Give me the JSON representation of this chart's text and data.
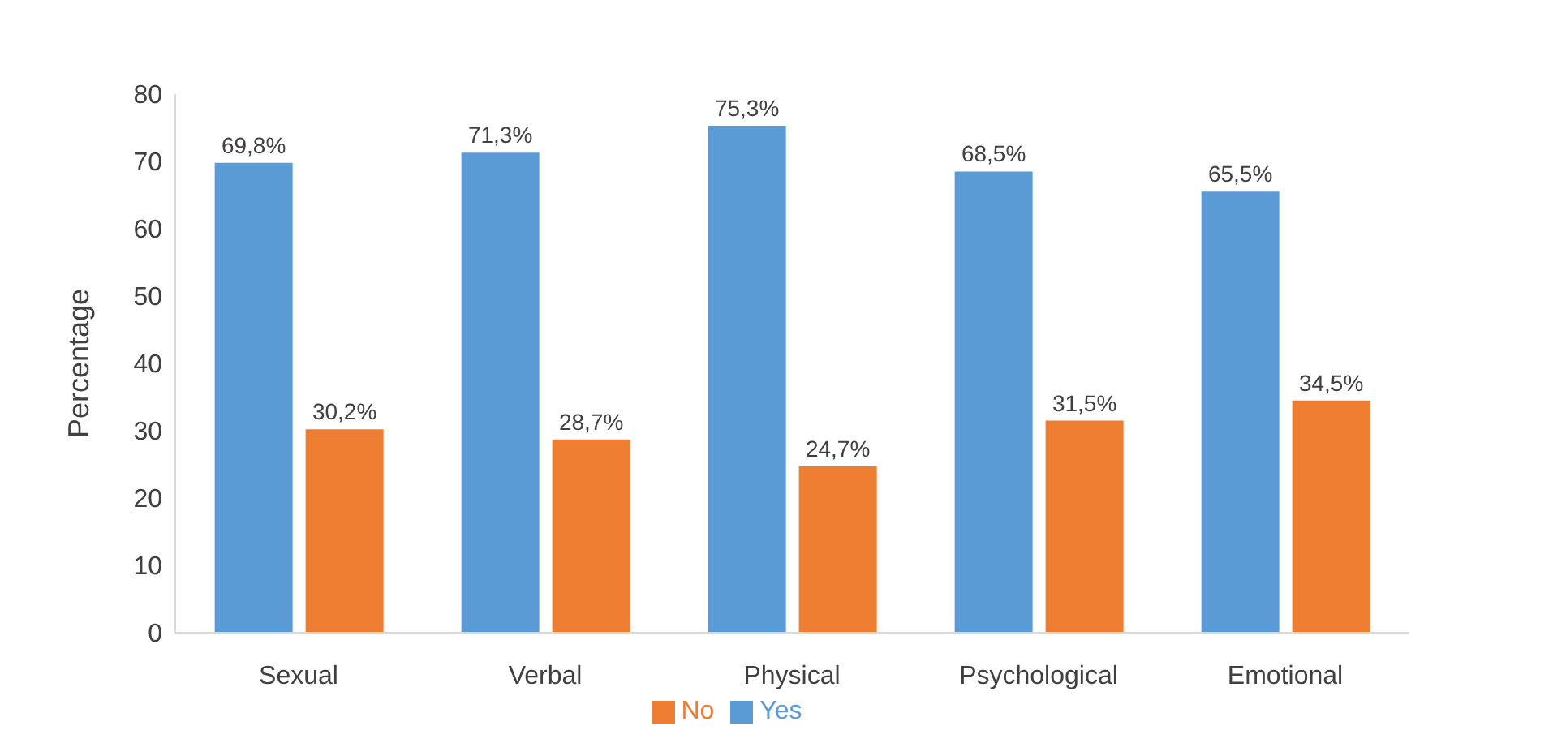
{
  "chart_data": {
    "type": "bar",
    "ylabel": "Percentage",
    "categories": [
      "Sexual",
      "Verbal",
      "Physical",
      "Psychological",
      "Emotional"
    ],
    "series": [
      {
        "name": "Yes",
        "color": "#5b9bd5",
        "values": [
          69.8,
          71.3,
          75.3,
          68.5,
          65.5
        ],
        "value_labels": [
          "69,8%",
          "71,3%",
          "75,3%",
          "68,5%",
          "65,5%"
        ]
      },
      {
        "name": "No",
        "color": "#ed7d31",
        "values": [
          30.2,
          28.7,
          24.7,
          31.5,
          34.5
        ],
        "value_labels": [
          "30,2%",
          "28,7%",
          "24,7%",
          "31,5%",
          "34,5%"
        ]
      }
    ],
    "ylim": [
      0,
      80
    ],
    "yticks": [
      0,
      10,
      20,
      30,
      40,
      50,
      60,
      70,
      80
    ],
    "grid": false,
    "legend": "bottom"
  }
}
